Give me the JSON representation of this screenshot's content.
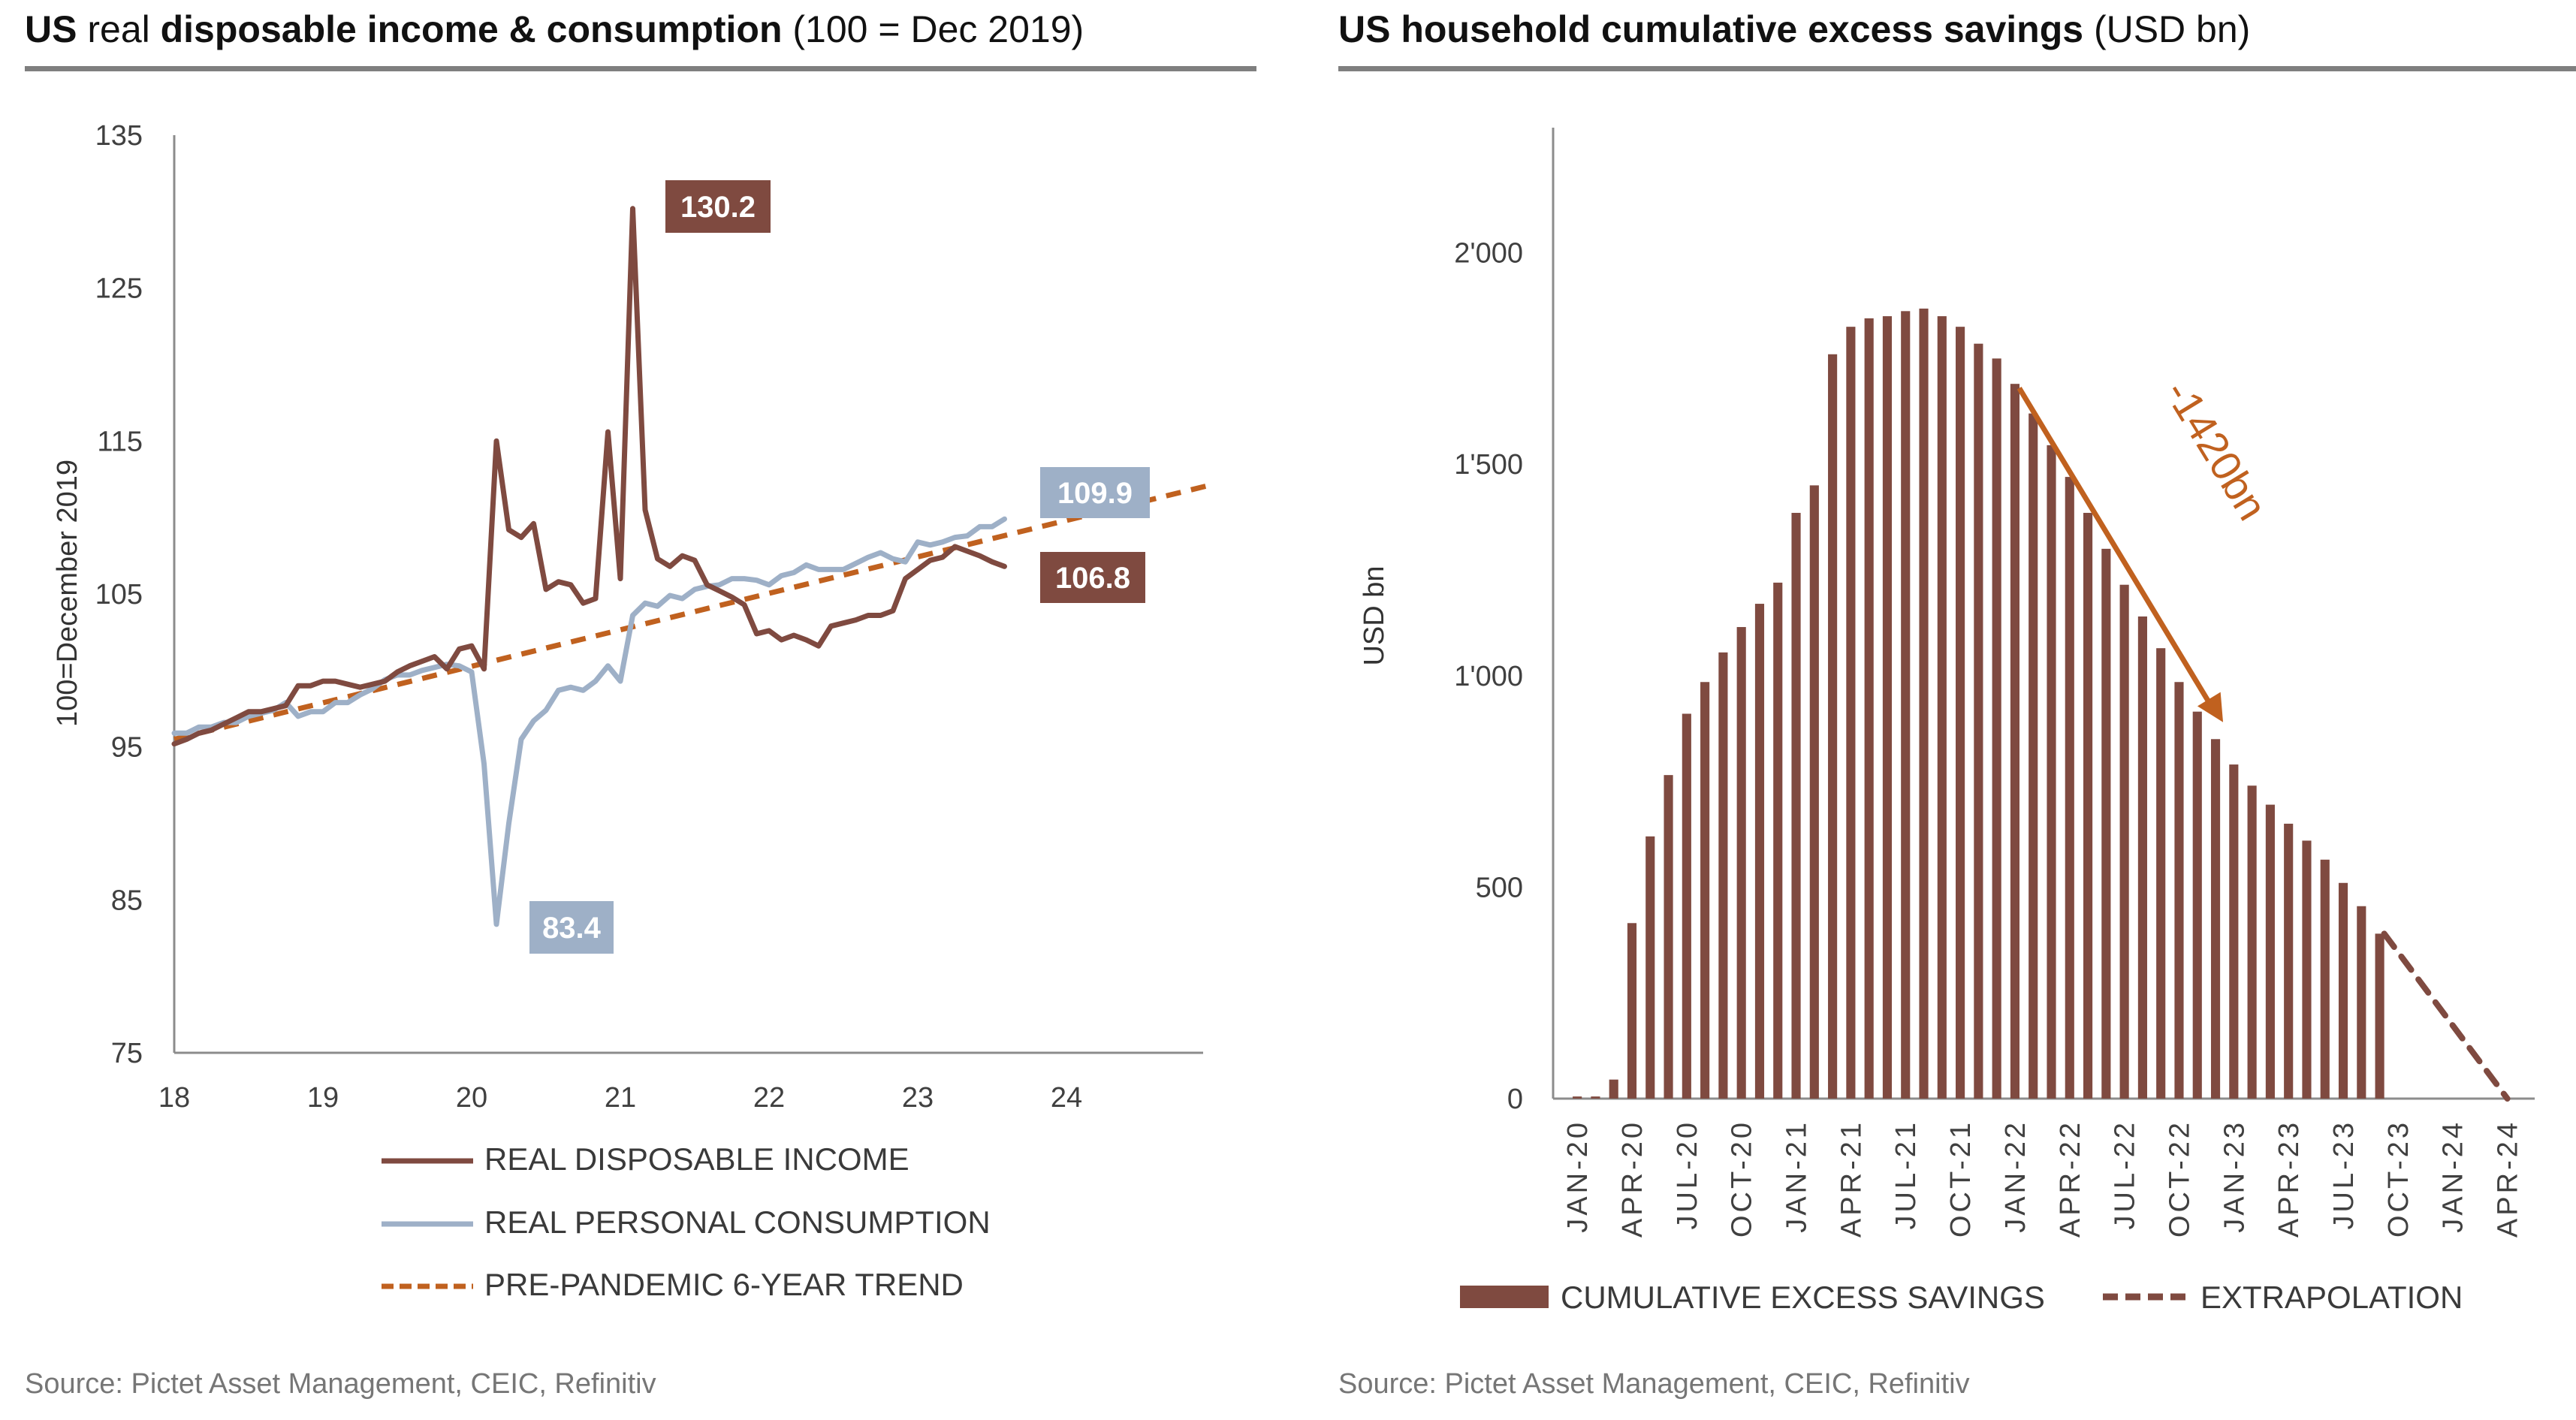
{
  "left_panel": {
    "title_parts": [
      {
        "text": "US ",
        "bold": true
      },
      {
        "text": "real ",
        "bold": false
      },
      {
        "text": "disposable income & consumption",
        "bold": true
      },
      {
        "text": " (100 = Dec 2019)",
        "bold": false
      }
    ],
    "source": "Source: Pictet Asset Management, CEIC, Refinitiv"
  },
  "right_panel": {
    "title_parts": [
      {
        "text": "US household cumulative excess savings",
        "bold": true
      },
      {
        "text": " (USD bn)",
        "bold": false
      }
    ],
    "source": "Source: Pictet Asset Management, CEIC, Refinitiv"
  },
  "colors": {
    "income": "#7f4a40",
    "consumption": "#9eb0c7",
    "trend": "#c0611f",
    "bars": "#7f4a40",
    "axis": "#8c8c8c",
    "title_rule": "#7f7f7f"
  },
  "chart_data": [
    {
      "type": "line",
      "title": "US real disposable income & consumption (100 = Dec 2019)",
      "xlabel": "",
      "ylabel": "100=December 2019",
      "xlim": [
        2018,
        2025
      ],
      "ylim": [
        75,
        135
      ],
      "yticks": [
        75,
        85,
        95,
        105,
        115,
        125,
        135
      ],
      "xticks": [
        2018,
        2019,
        2020,
        2021,
        2022,
        2023,
        2024
      ],
      "xtick_labels": [
        "18",
        "19",
        "20",
        "21",
        "22",
        "23",
        "24"
      ],
      "grid": false,
      "legend_position": "bottom",
      "series": [
        {
          "name": "REAL DISPOSABLE INCOME",
          "style": "solid",
          "x_start": 2018.0,
          "x_step": 0.08333,
          "values": [
            95.2,
            95.5,
            95.9,
            96.1,
            96.5,
            96.9,
            97.3,
            97.3,
            97.5,
            97.7,
            99.0,
            99.0,
            99.3,
            99.3,
            99.1,
            98.9,
            99.1,
            99.3,
            99.9,
            100.3,
            100.6,
            100.9,
            100.1,
            101.4,
            101.6,
            100.1,
            115.0,
            109.2,
            108.7,
            109.6,
            105.3,
            105.8,
            105.6,
            104.4,
            104.7,
            115.6,
            106.0,
            130.2,
            110.5,
            107.3,
            106.8,
            107.5,
            107.2,
            105.6,
            105.2,
            104.8,
            104.3,
            102.4,
            102.6,
            102.0,
            102.3,
            102.0,
            101.6,
            102.9,
            103.1,
            103.3,
            103.6,
            103.6,
            103.9,
            106.0,
            106.6,
            107.2,
            107.4,
            108.1,
            107.8,
            107.5,
            107.1,
            106.8
          ]
        },
        {
          "name": "REAL PERSONAL CONSUMPTION",
          "style": "solid",
          "x_start": 2018.0,
          "x_step": 0.08333,
          "values": [
            95.9,
            95.9,
            96.3,
            96.3,
            96.6,
            96.6,
            97.0,
            97.2,
            97.4,
            97.9,
            97.0,
            97.3,
            97.3,
            97.9,
            97.9,
            98.4,
            98.8,
            99.4,
            99.7,
            99.7,
            100.0,
            100.2,
            100.4,
            100.3,
            99.9,
            93.9,
            83.4,
            90.0,
            95.5,
            96.7,
            97.4,
            98.7,
            98.9,
            98.7,
            99.3,
            100.3,
            99.3,
            103.6,
            104.4,
            104.2,
            104.9,
            104.7,
            105.3,
            105.5,
            105.6,
            106.0,
            106.0,
            105.9,
            105.6,
            106.2,
            106.4,
            106.9,
            106.6,
            106.6,
            106.6,
            107.0,
            107.4,
            107.7,
            107.3,
            107.1,
            108.4,
            108.2,
            108.4,
            108.7,
            108.8,
            109.4,
            109.4,
            109.9
          ]
        },
        {
          "name": "PRE-PANDEMIC 6-YEAR TREND",
          "style": "dashed",
          "x": [
            2018.0,
            2025.0
          ],
          "values": [
            95.5,
            112.2
          ]
        }
      ],
      "annotations": [
        {
          "text": "130.2",
          "series": "REAL DISPOSABLE INCOME",
          "x": 2021.17,
          "y": 130.2
        },
        {
          "text": "83.4",
          "series": "REAL PERSONAL CONSUMPTION",
          "x": 2020.25,
          "y": 83.4
        },
        {
          "text": "109.9",
          "series": "REAL PERSONAL CONSUMPTION",
          "x": 2023.58,
          "y": 109.9
        },
        {
          "text": "106.8",
          "series": "REAL DISPOSABLE INCOME",
          "x": 2023.58,
          "y": 106.8
        }
      ]
    },
    {
      "type": "bar",
      "title": "US household cumulative excess savings (USD bn)",
      "xlabel": "",
      "ylabel": "USD bn",
      "ylim": [
        0,
        2300
      ],
      "yticks": [
        0,
        500,
        1000,
        1500,
        2000
      ],
      "ytick_labels": [
        "0",
        "500",
        "1'000",
        "1'500",
        "2'000"
      ],
      "grid": false,
      "legend_position": "bottom",
      "month_slots": 53,
      "xtick_labels": [
        "JAN-20",
        "APR-20",
        "JUL-20",
        "OCT-20",
        "JAN-21",
        "APR-21",
        "JUL-21",
        "OCT-21",
        "JAN-22",
        "APR-22",
        "JUL-22",
        "OCT-22",
        "JAN-23",
        "APR-23",
        "JUL-23",
        "OCT-23",
        "JAN-24",
        "APR-24"
      ],
      "series": [
        {
          "name": "CUMULATIVE EXCESS SAVINGS",
          "style": "bar",
          "start": "JAN-20",
          "values": [
            5,
            5,
            45,
            415,
            620,
            765,
            910,
            985,
            1055,
            1115,
            1170,
            1220,
            1385,
            1450,
            1760,
            1825,
            1845,
            1850,
            1862,
            1868,
            1850,
            1825,
            1785,
            1750,
            1690,
            1620,
            1545,
            1470,
            1385,
            1300,
            1215,
            1140,
            1065,
            985,
            915,
            850,
            790,
            740,
            695,
            650,
            610,
            565,
            510,
            455,
            390
          ]
        },
        {
          "name": "EXTRAPOLATION",
          "style": "dashed",
          "points": [
            {
              "month_index": 44,
              "value": 390
            },
            {
              "month_index": 51,
              "value": 0
            }
          ]
        }
      ],
      "annotations": [
        {
          "text": "-1420bn",
          "type": "arrow",
          "from_month_index": 23,
          "from_value": 1680,
          "to_month_index": 35,
          "to_value": 890
        }
      ]
    }
  ]
}
